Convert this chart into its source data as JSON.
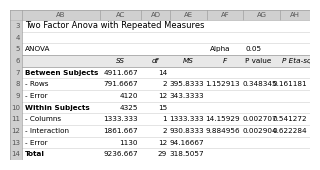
{
  "title": "Two Factor Anova with Repeated Measures",
  "anova_label": "ANOVA",
  "alpha_label": "Alpha",
  "alpha_value": "0.05",
  "col_headers": [
    "",
    "SS",
    "df",
    "MS",
    "F",
    "P value",
    "P Eta-sq"
  ],
  "rows": [
    {
      "label": "Between Subjects",
      "ss": "4911.667",
      "df": "14",
      "ms": "",
      "f": "",
      "pval": "",
      "eta": "",
      "bold": true
    },
    {
      "label": "- Rows",
      "ss": "791.6667",
      "df": "2",
      "ms": "395.8333",
      "f": "1.152913",
      "pval": "0.348345",
      "eta": "0.161181",
      "bold": false
    },
    {
      "label": "- Error",
      "ss": "4120",
      "df": "12",
      "ms": "343.3333",
      "f": "",
      "pval": "",
      "eta": "",
      "bold": false
    },
    {
      "label": "Within Subjects",
      "ss": "4325",
      "df": "15",
      "ms": "",
      "f": "",
      "pval": "",
      "eta": "",
      "bold": true
    },
    {
      "label": "- Columns",
      "ss": "1333.333",
      "df": "1",
      "ms": "1333.333",
      "f": "14.15929",
      "pval": "0.002707",
      "eta": "0.541272",
      "bold": false
    },
    {
      "label": "- Interaction",
      "ss": "1861.667",
      "df": "2",
      "ms": "930.8333",
      "f": "9.884956",
      "pval": "0.002904",
      "eta": "0.622284",
      "bold": false
    },
    {
      "label": "- Error",
      "ss": "1130",
      "df": "12",
      "ms": "94.16667",
      "f": "",
      "pval": "",
      "eta": "",
      "bold": false
    },
    {
      "label": "Total",
      "ss": "9236.667",
      "df": "29",
      "ms": "318.5057",
      "f": "",
      "pval": "",
      "eta": "",
      "bold": true
    }
  ],
  "header_color": "#e8e8e8",
  "border_color": "#b0b0b0",
  "bg_color": "#ffffff",
  "text_color": "#000000",
  "row_num_color": "#7f7f7f",
  "font_size": 5.2,
  "header_font_size": 5.2,
  "title_font_size": 6.0,
  "col_header_color": "#d0d0d0",
  "n_display_rows": 14,
  "col_header_row": 1,
  "row_numbers": [
    "3",
    "4",
    "5",
    "6",
    "7",
    "8",
    "9",
    "10",
    "11",
    "12",
    "13",
    "14"
  ],
  "sheet_header": [
    "AB",
    "AC",
    "AD",
    "AE",
    "AF",
    "AG",
    "AH"
  ]
}
